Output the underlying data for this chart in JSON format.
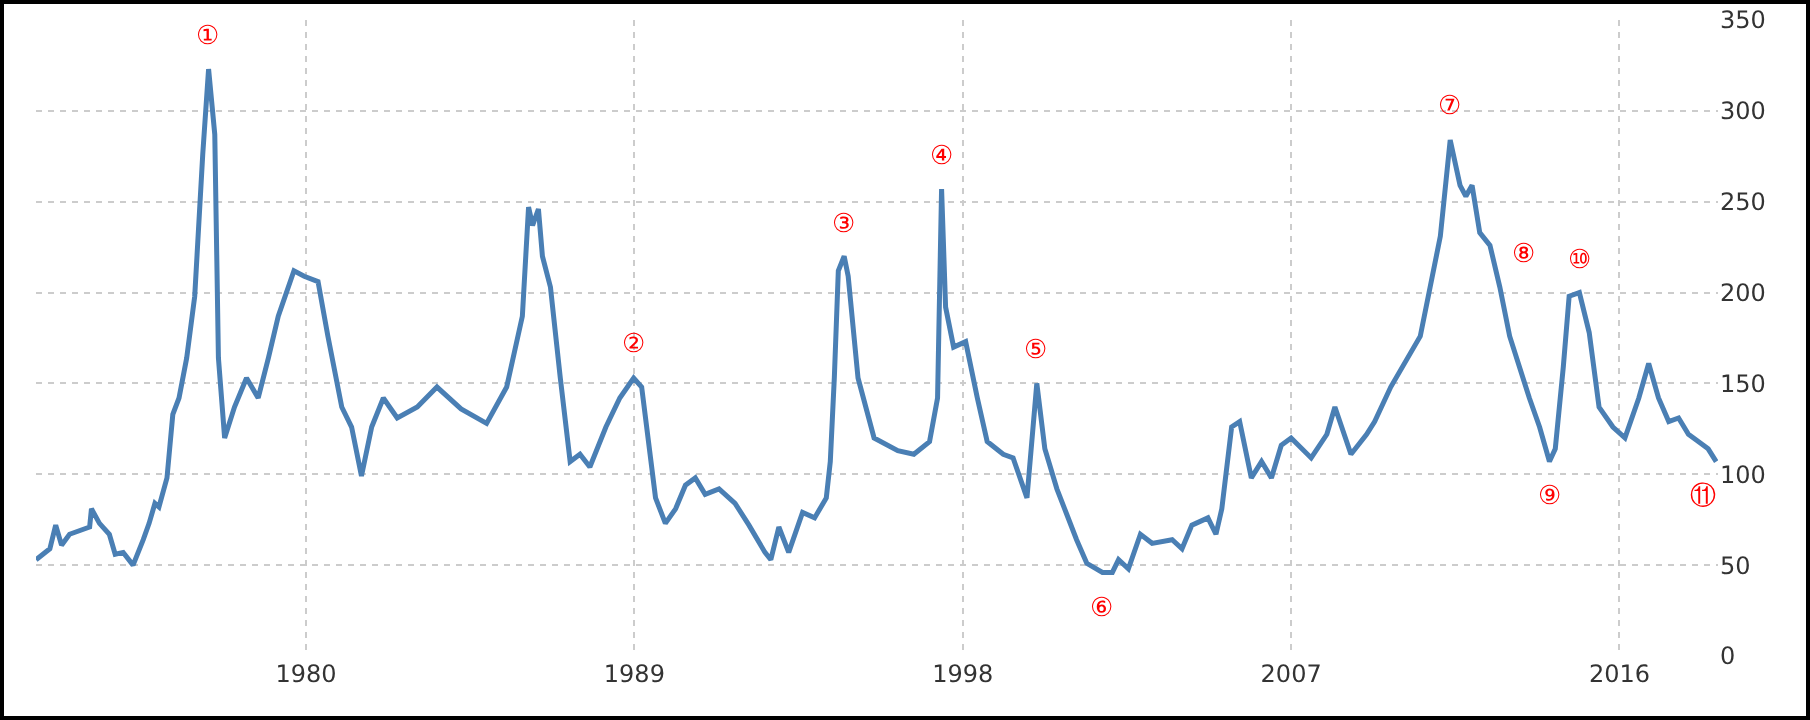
{
  "chart_data": {
    "type": "line",
    "x": [
      1972.6,
      1972.98,
      1973.14,
      1973.3,
      1973.52,
      1974.07,
      1974.12,
      1974.34,
      1974.61,
      1974.77,
      1974.99,
      1975.26,
      1975.54,
      1975.7,
      1975.86,
      1975.97,
      1976.19,
      1976.35,
      1976.52,
      1976.73,
      1976.95,
      1977.17,
      1977.33,
      1977.5,
      1977.6,
      1977.77,
      1978.04,
      1978.37,
      1978.69,
      1978.97,
      1979.24,
      1979.67,
      1979.95,
      1980.33,
      1980.6,
      1980.98,
      1981.25,
      1981.52,
      1981.8,
      1982.12,
      1982.5,
      1983.05,
      1983.59,
      1984.25,
      1984.95,
      1985.5,
      1985.93,
      1986.1,
      1986.21,
      1986.37,
      1986.48,
      1986.7,
      1986.97,
      1987.24,
      1987.51,
      1987.78,
      1988.22,
      1988.6,
      1988.98,
      1989.2,
      1989.58,
      1989.85,
      1990.13,
      1990.4,
      1990.67,
      1990.94,
      1991.32,
      1991.76,
      1992.14,
      1992.58,
      1992.74,
      1992.96,
      1993.23,
      1993.61,
      1993.94,
      1994.26,
      1994.37,
      1994.48,
      1994.59,
      1994.75,
      1994.86,
      1995.13,
      1995.57,
      1996.22,
      1996.66,
      1997.09,
      1997.31,
      1997.42,
      1997.53,
      1997.75,
      1998.08,
      1998.4,
      1998.67,
      1999.11,
      1999.38,
      1999.76,
      2000.03,
      2000.25,
      2000.58,
      2000.85,
      2001.12,
      2001.4,
      2001.83,
      2002.1,
      2002.27,
      2002.54,
      2002.87,
      2003.19,
      2003.74,
      2004.01,
      2004.28,
      2004.72,
      2004.94,
      2005.1,
      2005.37,
      2005.59,
      2005.91,
      2006.19,
      2006.46,
      2006.73,
      2007.0,
      2007.55,
      2007.98,
      2008.2,
      2008.64,
      2009.07,
      2009.29,
      2009.73,
      2010.54,
      2011.09,
      2011.36,
      2011.63,
      2011.79,
      2011.96,
      2012.17,
      2012.45,
      2012.72,
      2012.99,
      2013.53,
      2013.81,
      2014.08,
      2014.24,
      2014.46,
      2014.62,
      2014.9,
      2015.17,
      2015.44,
      2015.82,
      2016.15,
      2016.53,
      2016.8,
      2017.07,
      2017.35,
      2017.62,
      2017.89,
      2018.16,
      2018.43,
      2018.65
    ],
    "series": [
      {
        "color": "#4a7fb4",
        "values": [
          53,
          59,
          72,
          61,
          67,
          71,
          81,
          73,
          67,
          56,
          57,
          50,
          64,
          73,
          84,
          82,
          98,
          133,
          142,
          164,
          198,
          276,
          323,
          287,
          164,
          120,
          137,
          153,
          142,
          164,
          187,
          212,
          209,
          206,
          176,
          137,
          126,
          99,
          126,
          142,
          131,
          137,
          148,
          136,
          128,
          148,
          187,
          247,
          237,
          246,
          220,
          203,
          153,
          107,
          111,
          104,
          126,
          142,
          153,
          148,
          87,
          73,
          81,
          94,
          98,
          89,
          92,
          84,
          72,
          57,
          53,
          71,
          57,
          79,
          76,
          87,
          107,
          153,
          212,
          220,
          209,
          153,
          120,
          113,
          111,
          118,
          142,
          257,
          192,
          170,
          173,
          142,
          118,
          111,
          109,
          87,
          150,
          114,
          92,
          78,
          64,
          51,
          46,
          46,
          53,
          48,
          67,
          62,
          64,
          59,
          72,
          76,
          67,
          81,
          126,
          129,
          98,
          107,
          98,
          116,
          120,
          109,
          122,
          137,
          111,
          122,
          129,
          148,
          176,
          231,
          284,
          259,
          253,
          259,
          233,
          226,
          203,
          176,
          142,
          126,
          107,
          114,
          159,
          198,
          200,
          178,
          137,
          126,
          120,
          142,
          161,
          142,
          129,
          131,
          122,
          118,
          114,
          107
        ]
      }
    ],
    "xlim": [
      1972.6,
      2018.7
    ],
    "xticks": [
      1980,
      1989,
      1998,
      2007,
      2016
    ],
    "ylim": [
      0,
      350
    ],
    "yticks": [
      0,
      50,
      100,
      150,
      200,
      250,
      300,
      350
    ],
    "grid": true,
    "annotations": [
      {
        "text": "①",
        "x": 1977.33,
        "y": 323
      },
      {
        "text": "②",
        "x": 1988.98,
        "y": 153
      },
      {
        "text": "③",
        "x": 1994.75,
        "y": 220
      },
      {
        "text": "④",
        "x": 1997.42,
        "y": 257
      },
      {
        "text": "⑤",
        "x": 2000.03,
        "y": 150
      },
      {
        "text": "⑥",
        "x": 2001.83,
        "y": 46
      },
      {
        "text": "⑦",
        "x": 2011.36,
        "y": 284
      },
      {
        "text": "⑧",
        "x": 2012.72,
        "y": 203
      },
      {
        "text": "⑨",
        "x": 2014.08,
        "y": 107
      },
      {
        "text": "⑩",
        "x": 2014.9,
        "y": 200
      },
      {
        "text": "⑪",
        "x": 2018.65,
        "y": 107
      }
    ]
  }
}
